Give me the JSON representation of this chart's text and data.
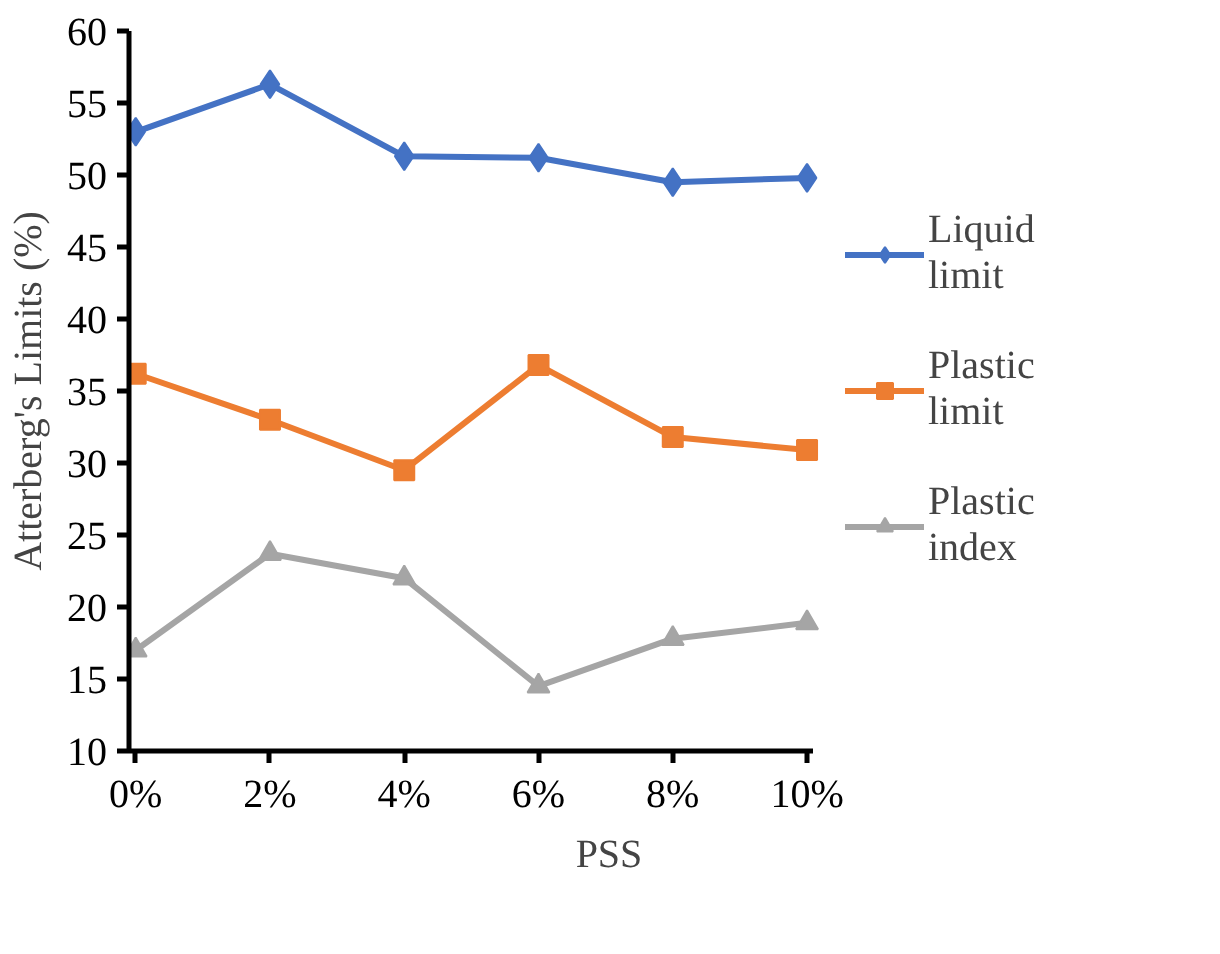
{
  "chart_data": {
    "type": "line",
    "xlabel": "PSS",
    "ylabel": "Atterberg's Limits (%)",
    "categories": [
      "0%",
      "2%",
      "4%",
      "6%",
      "8%",
      "10%"
    ],
    "ylim": [
      10,
      60
    ],
    "yticks": [
      10,
      15,
      20,
      25,
      30,
      35,
      40,
      45,
      50,
      55,
      60
    ],
    "grid": false,
    "legend": "right",
    "line_style": "solid",
    "series": [
      {
        "name": "Liquid limit",
        "color": "#4472c4",
        "marker": "diamond",
        "values": [
          53.0,
          56.3,
          51.3,
          51.2,
          49.5,
          49.8
        ]
      },
      {
        "name": "Plastic limit",
        "color": "#ed7d31",
        "marker": "square",
        "values": [
          36.2,
          33.0,
          29.5,
          36.8,
          31.8,
          30.9
        ]
      },
      {
        "name": "Plastic index",
        "color": "#a5a5a5",
        "marker": "triangle",
        "values": [
          17.0,
          23.7,
          22.0,
          14.5,
          17.8,
          18.9
        ]
      }
    ]
  }
}
